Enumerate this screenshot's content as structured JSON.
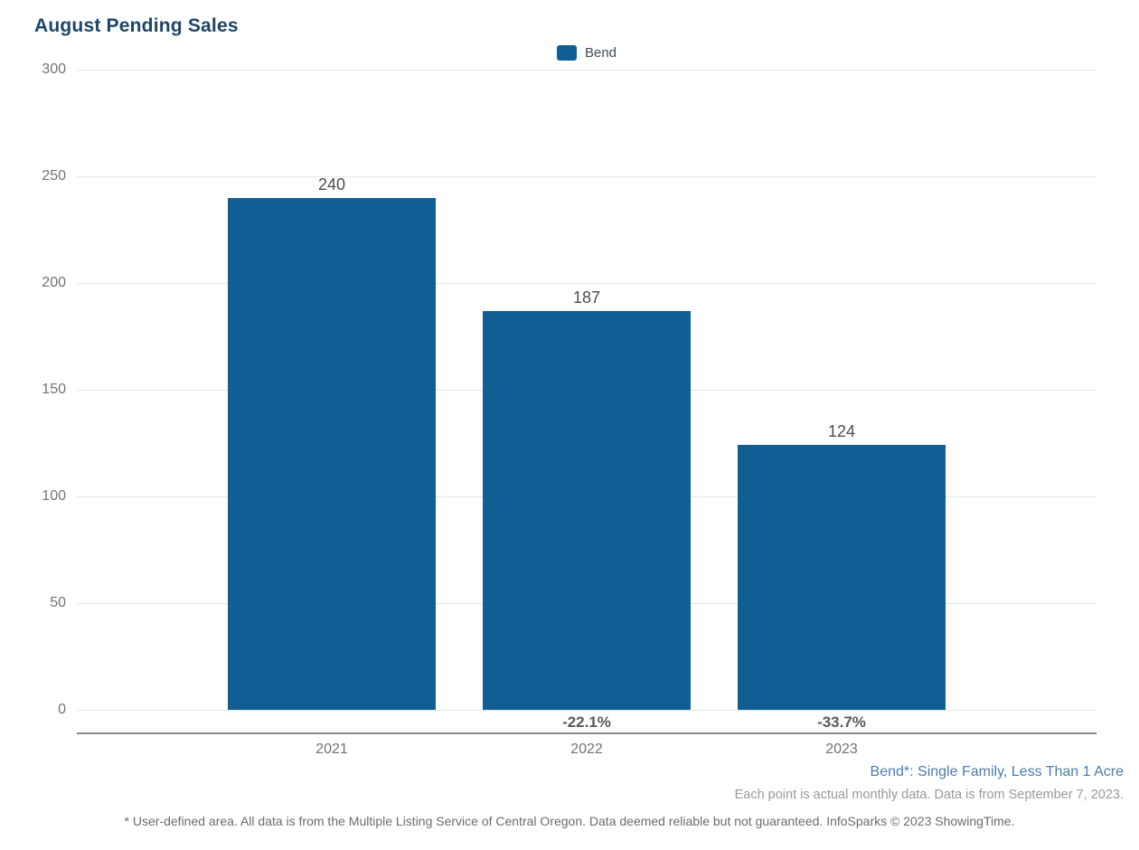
{
  "title": "August Pending Sales",
  "colors": {
    "bar": "#105e94",
    "title": "#1d4568",
    "grid": "#e6e6e6",
    "axis_line": "#8a8a8a",
    "tick_label": "#737373",
    "value_label": "#4d4d4d",
    "percent_label": "#595959",
    "legend_text": "#3c4a56",
    "series_note_blue": "#4a7dae",
    "data_note_gray": "#999999",
    "disclaimer_gray": "#6b6b6b"
  },
  "legend": {
    "items": [
      {
        "label": "Bend",
        "color": "#105e94"
      }
    ]
  },
  "chart_data": {
    "type": "bar",
    "title": "August Pending Sales",
    "categories": [
      "2021",
      "2022",
      "2023"
    ],
    "series": [
      {
        "name": "Bend",
        "values": [
          240,
          187,
          124
        ]
      }
    ],
    "value_labels": [
      "240",
      "187",
      "124"
    ],
    "change_labels": [
      "",
      "-22.1%",
      "-33.7%"
    ],
    "xlabel": "",
    "ylabel": "",
    "ylim": [
      0,
      300
    ],
    "yticks": [
      0,
      50,
      100,
      150,
      200,
      250,
      300
    ],
    "grid": true,
    "legend_position": "top-center"
  },
  "footnotes": {
    "series_definition": "Bend*: Single Family, Less Than 1 Acre",
    "data_note": "Each point is actual monthly data. Data is from September 7, 2023.",
    "disclaimer": "* User-defined area. All data is from the Multiple Listing Service of Central Oregon. Data deemed reliable but not guaranteed. InfoSparks © 2023 ShowingTime."
  }
}
